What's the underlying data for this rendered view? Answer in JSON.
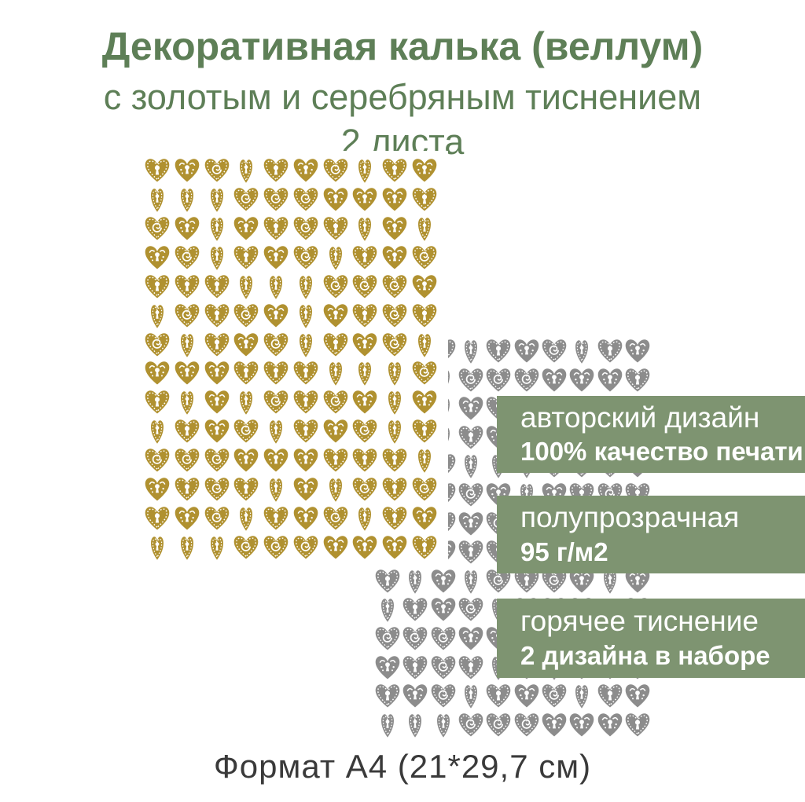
{
  "title": {
    "line1": "Декоративная калька (веллум)",
    "line2": "с золотым и серебряным тиснением",
    "line3": "2 листа",
    "color": "#5e7f57"
  },
  "sheets": {
    "gold": {
      "label": "gold-embossed-hearts-sheet",
      "color": "#b09130",
      "rows": 14,
      "cols": 10
    },
    "silver": {
      "label": "silver-embossed-hearts-sheet",
      "color": "#8c8c8c",
      "rows": 14,
      "cols": 10
    }
  },
  "badges": [
    {
      "line1": "авторский дизайн",
      "line2": "100% качество печати"
    },
    {
      "line1": "полупрозрачная",
      "line2": "95 г/м2"
    },
    {
      "line1": "горячее тиснение",
      "line2": "2 дизайна в наборе"
    }
  ],
  "badge_bg": "#7e9471",
  "caption": {
    "text": "Формат А4 (21*29,7 см)",
    "color": "#3a3a3a"
  }
}
